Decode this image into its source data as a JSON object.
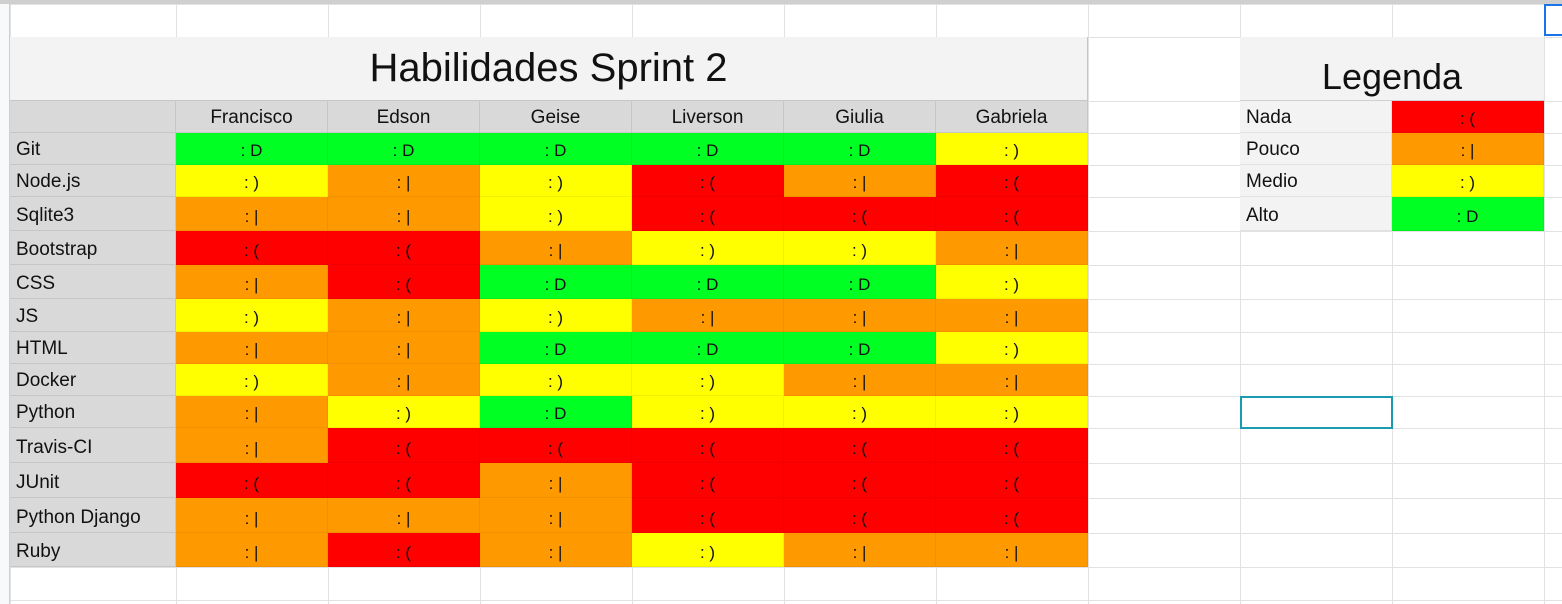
{
  "title": "Habilidades Sprint 2",
  "people": [
    "Francisco",
    "Edson",
    "Geise",
    "Liverson",
    "Giulia",
    "Gabriela"
  ],
  "skills": [
    {
      "name": "Git",
      "levels": [
        "alto",
        "alto",
        "alto",
        "alto",
        "alto",
        "medio"
      ]
    },
    {
      "name": "Node.js",
      "levels": [
        "medio",
        "pouco",
        "medio",
        "nada",
        "pouco",
        "nada"
      ]
    },
    {
      "name": "Sqlite3",
      "levels": [
        "pouco",
        "pouco",
        "medio",
        "nada",
        "nada",
        "nada"
      ]
    },
    {
      "name": "Bootstrap",
      "levels": [
        "nada",
        "nada",
        "pouco",
        "medio",
        "medio",
        "pouco"
      ]
    },
    {
      "name": "CSS",
      "levels": [
        "pouco",
        "nada",
        "alto",
        "alto",
        "alto",
        "medio"
      ]
    },
    {
      "name": "JS",
      "levels": [
        "medio",
        "pouco",
        "medio",
        "pouco",
        "pouco",
        "pouco"
      ]
    },
    {
      "name": "HTML",
      "levels": [
        "pouco",
        "pouco",
        "alto",
        "alto",
        "alto",
        "medio"
      ]
    },
    {
      "name": "Docker",
      "levels": [
        "medio",
        "pouco",
        "medio",
        "medio",
        "pouco",
        "pouco"
      ]
    },
    {
      "name": "Python",
      "levels": [
        "pouco",
        "medio",
        "alto",
        "medio",
        "medio",
        "medio"
      ]
    },
    {
      "name": "Travis-CI",
      "levels": [
        "pouco",
        "nada",
        "nada",
        "nada",
        "nada",
        "nada"
      ]
    },
    {
      "name": "JUnit",
      "levels": [
        "nada",
        "nada",
        "pouco",
        "nada",
        "nada",
        "nada"
      ]
    },
    {
      "name": "Python Django",
      "levels": [
        "pouco",
        "pouco",
        "pouco",
        "nada",
        "nada",
        "nada"
      ]
    },
    {
      "name": "Ruby",
      "levels": [
        "pouco",
        "nada",
        "pouco",
        "medio",
        "pouco",
        "pouco"
      ]
    }
  ],
  "levels": {
    "nada": {
      "face": ": (",
      "color": "#ff0000"
    },
    "pouco": {
      "face": ": |",
      "color": "#ff9900"
    },
    "medio": {
      "face": ": )",
      "color": "#ffff00"
    },
    "alto": {
      "face": ": D",
      "color": "#00ff22"
    }
  },
  "legend": {
    "title": "Legenda",
    "items": [
      {
        "label": "Nada",
        "level": "nada"
      },
      {
        "label": "Pouco",
        "level": "pouco"
      },
      {
        "label": "Medio",
        "level": "medio"
      },
      {
        "label": "Alto",
        "level": "alto"
      }
    ]
  }
}
